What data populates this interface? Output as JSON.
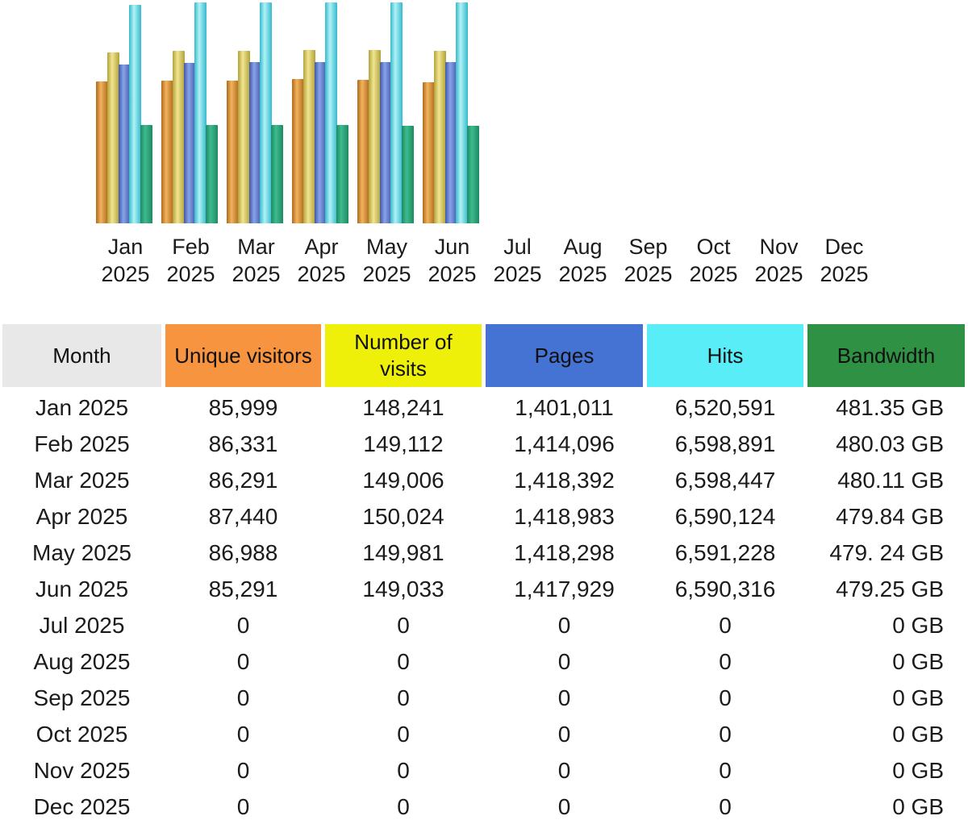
{
  "page": {
    "background": "#ffffff",
    "text_color": "#1b1b1b"
  },
  "chart_data": {
    "type": "bar",
    "title": "",
    "xlabel": "",
    "ylabel": "",
    "grid": false,
    "legend_position": "none",
    "categories": [
      "Jan 2025",
      "Feb 2025",
      "Mar 2025",
      "Apr 2025",
      "May 2025",
      "Jun 2025",
      "Jul 2025",
      "Aug 2025",
      "Sep 2025",
      "Oct 2025",
      "Nov 2025",
      "Dec 2025"
    ],
    "series": [
      {
        "name": "Unique visitors",
        "values": [
          85999,
          86331,
          86291,
          87440,
          86988,
          85291,
          0,
          0,
          0,
          0,
          0,
          0
        ],
        "bar_color_dark": "#b06a1c",
        "bar_color_light": "#f2b35d"
      },
      {
        "name": "Number of visits",
        "values": [
          148241,
          149112,
          149006,
          150024,
          149981,
          149033,
          0,
          0,
          0,
          0,
          0,
          0
        ],
        "bar_color_dark": "#b3a238",
        "bar_color_light": "#f1e592"
      },
      {
        "name": "Pages",
        "values": [
          1401011,
          1414096,
          1418392,
          1418983,
          1418298,
          1417929,
          0,
          0,
          0,
          0,
          0,
          0
        ],
        "bar_color_dark": "#3f58ab",
        "bar_color_light": "#89a3e8"
      },
      {
        "name": "Hits",
        "values": [
          6520591,
          6598891,
          6598447,
          6590124,
          6591228,
          6590316,
          0,
          0,
          0,
          0,
          0,
          0
        ],
        "bar_color_dark": "#35b9cd",
        "bar_color_light": "#b0f2f6"
      },
      {
        "name": "Bandwidth (GB)",
        "values": [
          481.35,
          480.03,
          480.11,
          479.84,
          479.24,
          479.25,
          0,
          0,
          0,
          0,
          0,
          0
        ],
        "bar_color_dark": "#1f8a61",
        "bar_color_light": "#3dbb8f"
      }
    ]
  },
  "table": {
    "columns": [
      {
        "label": "Month",
        "bg": "#e8e8e8"
      },
      {
        "label": "Unique visitors",
        "bg": "#f79440"
      },
      {
        "label": "Number of visits",
        "bg": "#eff00a"
      },
      {
        "label": "Pages",
        "bg": "#4573d3"
      },
      {
        "label": "Hits",
        "bg": "#59edf8"
      },
      {
        "label": "Bandwidth",
        "bg": "#2f9144"
      }
    ],
    "rows": [
      [
        "Jan 2025",
        "85,999",
        "148,241",
        "1,401,011",
        "6,520,591",
        "481.35 GB"
      ],
      [
        "Feb 2025",
        "86,331",
        "149,112",
        "1,414,096",
        "6,598,891",
        "480.03 GB"
      ],
      [
        "Mar 2025",
        "86,291",
        "149,006",
        "1,418,392",
        "6,598,447",
        "480.11 GB"
      ],
      [
        "Apr 2025",
        "87,440",
        "150,024",
        "1,418,983",
        "6,590,124",
        "479.84 GB"
      ],
      [
        "May 2025",
        "86,988",
        "149,981",
        "1,418,298",
        "6,591,228",
        "479. 24 GB"
      ],
      [
        "Jun 2025",
        "85,291",
        "149,033",
        "1,417,929",
        "6,590,316",
        "479.25 GB"
      ],
      [
        "Jul 2025",
        "0",
        "0",
        "0",
        "0",
        "0 GB"
      ],
      [
        "Aug 2025",
        "0",
        "0",
        "0",
        "0",
        "0 GB"
      ],
      [
        "Sep 2025",
        "0",
        "0",
        "0",
        "0",
        "0 GB"
      ],
      [
        "Oct 2025",
        "0",
        "0",
        "0",
        "0",
        "0 GB"
      ],
      [
        "Nov 2025",
        "0",
        "0",
        "0",
        "0",
        "0 GB"
      ],
      [
        "Dec 2025",
        "0",
        "0",
        "0",
        "0",
        "0 GB"
      ]
    ]
  }
}
